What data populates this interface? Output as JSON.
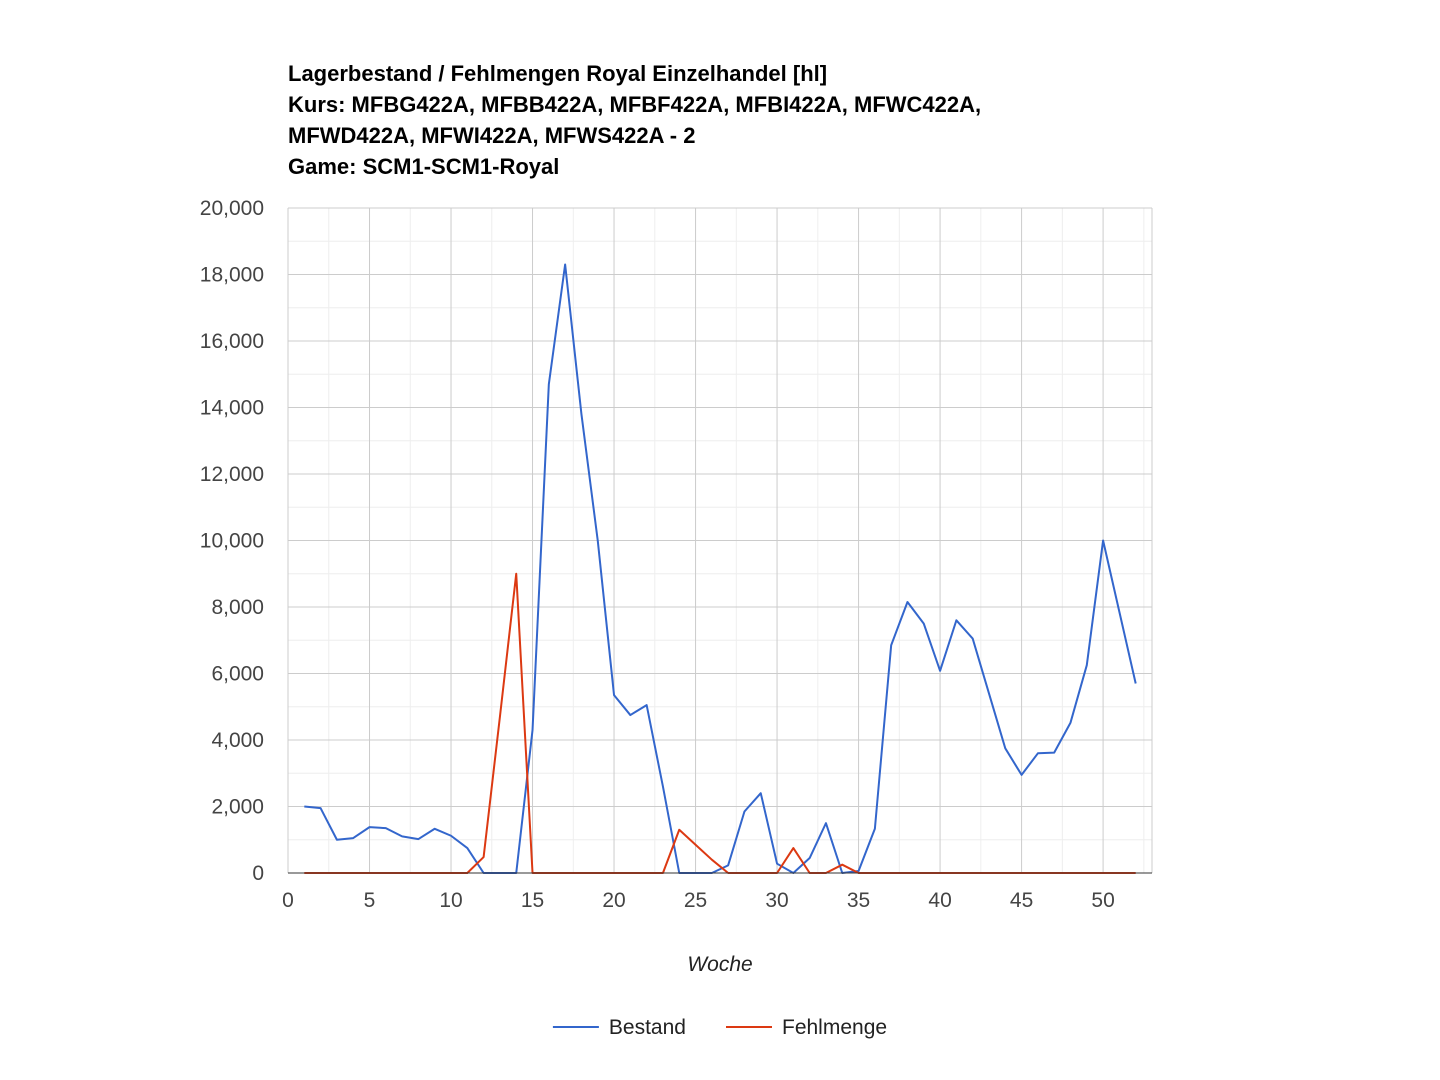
{
  "chart_data": {
    "type": "line",
    "title": [
      "Lagerbestand / Fehlmengen Royal Einzelhandel [hl]",
      "Kurs: MFBG422A, MFBB422A, MFBF422A, MFBI422A, MFWC422A,",
      "MFWD422A, MFWI422A, MFWS422A - 2",
      "Game: SCM1-SCM1-Royal"
    ],
    "xlabel": "Woche",
    "ylabel": "",
    "xlim": [
      0,
      53
    ],
    "ylim": [
      0,
      20000
    ],
    "x_ticks": [
      0,
      5,
      10,
      15,
      20,
      25,
      30,
      35,
      40,
      45,
      50
    ],
    "x_tick_labels": [
      "0",
      "5",
      "10",
      "15",
      "20",
      "25",
      "30",
      "35",
      "40",
      "45",
      "50"
    ],
    "y_ticks": [
      0,
      2000,
      4000,
      6000,
      8000,
      10000,
      12000,
      14000,
      16000,
      18000,
      20000
    ],
    "y_tick_labels": [
      "0",
      "2,000",
      "4,000",
      "6,000",
      "8,000",
      "10,000",
      "12,000",
      "14,000",
      "16,000",
      "18,000",
      "20,000"
    ],
    "grid": true,
    "legend_position": "bottom",
    "x": [
      1,
      2,
      3,
      4,
      5,
      6,
      7,
      8,
      9,
      10,
      11,
      12,
      13,
      14,
      15,
      16,
      17,
      18,
      19,
      20,
      21,
      22,
      23,
      24,
      25,
      26,
      27,
      28,
      29,
      30,
      31,
      32,
      33,
      34,
      35,
      36,
      37,
      38,
      39,
      40,
      41,
      42,
      43,
      44,
      45,
      46,
      47,
      48,
      49,
      50,
      51,
      52
    ],
    "series": [
      {
        "name": "Bestand",
        "color": "#3366cc",
        "values": [
          2000,
          1950,
          1000,
          1050,
          1380,
          1350,
          1100,
          1020,
          1330,
          1120,
          750,
          0,
          0,
          0,
          4300,
          14700,
          18300,
          13800,
          10000,
          5350,
          4750,
          5050,
          2600,
          0,
          0,
          0,
          230,
          1850,
          2400,
          280,
          0,
          450,
          1500,
          0,
          60,
          1330,
          6850,
          8150,
          7500,
          6080,
          7600,
          7050,
          5400,
          3750,
          2950,
          3600,
          3620,
          4520,
          6250,
          10000,
          7850,
          5700
        ]
      },
      {
        "name": "Fehlmenge",
        "color": "#dc3912",
        "values": [
          0,
          0,
          0,
          0,
          0,
          0,
          0,
          0,
          0,
          0,
          0,
          480,
          4700,
          9000,
          0,
          0,
          0,
          0,
          0,
          0,
          0,
          0,
          0,
          1300,
          850,
          400,
          0,
          0,
          0,
          0,
          750,
          0,
          0,
          250,
          0,
          0,
          0,
          0,
          0,
          0,
          0,
          0,
          0,
          0,
          0,
          0,
          0,
          0,
          0,
          0,
          0,
          0
        ]
      }
    ]
  }
}
